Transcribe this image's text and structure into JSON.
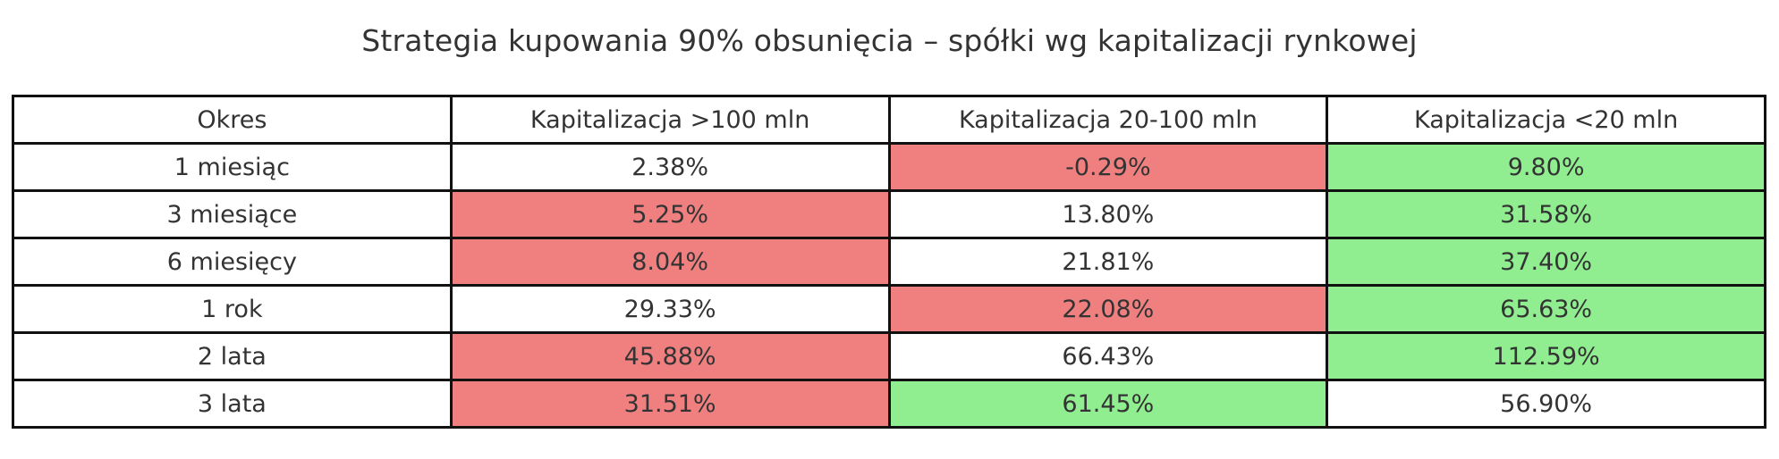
{
  "colors": {
    "negative_highlight": "#f08080",
    "positive_highlight": "#90ee90",
    "neutral": "#ffffff"
  },
  "chart_data": {
    "type": "table",
    "title": "Strategia kupowania 90% obsunięcia – spółki wg kapitalizacji rynkowej",
    "columns": [
      "Okres",
      "Kapitalizacja >100 mln",
      "Kapitalizacja 20-100 mln",
      "Kapitalizacja <20 mln"
    ],
    "rows": [
      {
        "label": "1 miesiąc",
        "values": [
          2.38,
          -0.29,
          9.8
        ],
        "display": [
          "2.38%",
          "-0.29%",
          "9.80%"
        ],
        "highlight": [
          "none",
          "red",
          "green"
        ]
      },
      {
        "label": "3 miesiące",
        "values": [
          5.25,
          13.8,
          31.58
        ],
        "display": [
          "5.25%",
          "13.80%",
          "31.58%"
        ],
        "highlight": [
          "red",
          "none",
          "green"
        ]
      },
      {
        "label": "6 miesięcy",
        "values": [
          8.04,
          21.81,
          37.4
        ],
        "display": [
          "8.04%",
          "21.81%",
          "37.40%"
        ],
        "highlight": [
          "red",
          "none",
          "green"
        ]
      },
      {
        "label": "1 rok",
        "values": [
          29.33,
          22.08,
          65.63
        ],
        "display": [
          "29.33%",
          "22.08%",
          "65.63%"
        ],
        "highlight": [
          "none",
          "red",
          "green"
        ]
      },
      {
        "label": "2 lata",
        "values": [
          45.88,
          66.43,
          112.59
        ],
        "display": [
          "45.88%",
          "66.43%",
          "112.59%"
        ],
        "highlight": [
          "red",
          "none",
          "green"
        ]
      },
      {
        "label": "3 lata",
        "values": [
          31.51,
          61.45,
          56.9
        ],
        "display": [
          "31.51%",
          "61.45%",
          "56.90%"
        ],
        "highlight": [
          "red",
          "green",
          "none"
        ]
      }
    ]
  }
}
